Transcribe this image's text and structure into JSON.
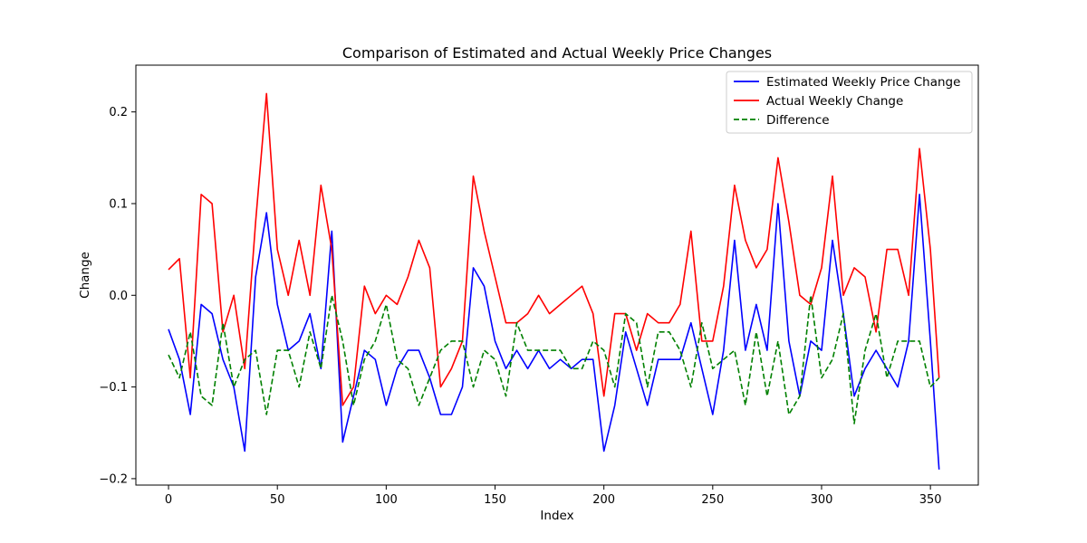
{
  "chart_data": {
    "type": "line",
    "title": "Comparison of Estimated and Actual Weekly Price Changes",
    "xlabel": "Index",
    "ylabel": "Change",
    "xlim": [
      -15,
      372
    ],
    "ylim": [
      -0.207,
      0.251
    ],
    "xticks": [
      0,
      50,
      100,
      150,
      200,
      250,
      300,
      350
    ],
    "yticks": [
      -0.2,
      -0.1,
      0.0,
      0.1,
      0.2
    ],
    "ytick_labels": [
      "−0.2",
      "−0.1",
      "0.0",
      "0.1",
      "0.2"
    ],
    "grid": false,
    "legend_position": "upper right",
    "x": [
      0,
      5,
      10,
      15,
      20,
      25,
      30,
      35,
      40,
      45,
      50,
      55,
      60,
      65,
      70,
      75,
      80,
      85,
      90,
      95,
      100,
      105,
      110,
      115,
      120,
      125,
      130,
      135,
      140,
      145,
      150,
      155,
      160,
      165,
      170,
      175,
      180,
      185,
      190,
      195,
      200,
      205,
      210,
      215,
      220,
      225,
      230,
      235,
      240,
      245,
      250,
      255,
      260,
      265,
      270,
      275,
      280,
      285,
      290,
      295,
      300,
      305,
      310,
      315,
      320,
      325,
      330,
      335,
      340,
      345,
      350,
      354
    ],
    "series": [
      {
        "name": "Estimated Weekly Price Change",
        "color": "#0000ff",
        "dash": "solid",
        "values": [
          -0.037,
          -0.07,
          -0.13,
          -0.01,
          -0.02,
          -0.07,
          -0.1,
          -0.17,
          0.02,
          0.09,
          -0.01,
          -0.06,
          -0.05,
          -0.02,
          -0.08,
          0.07,
          -0.16,
          -0.11,
          -0.06,
          -0.07,
          -0.12,
          -0.08,
          -0.06,
          -0.06,
          -0.09,
          -0.13,
          -0.13,
          -0.1,
          0.03,
          0.01,
          -0.05,
          -0.08,
          -0.06,
          -0.08,
          -0.06,
          -0.08,
          -0.07,
          -0.08,
          -0.07,
          -0.07,
          -0.17,
          -0.12,
          -0.04,
          -0.08,
          -0.12,
          -0.07,
          -0.07,
          -0.07,
          -0.03,
          -0.08,
          -0.13,
          -0.06,
          0.06,
          -0.06,
          -0.01,
          -0.06,
          0.1,
          -0.05,
          -0.11,
          -0.05,
          -0.06,
          0.06,
          -0.02,
          -0.11,
          -0.08,
          -0.06,
          -0.08,
          -0.1,
          -0.05,
          0.11,
          -0.05,
          -0.19
        ]
      },
      {
        "name": "Actual Weekly Change",
        "color": "#ff0000",
        "dash": "solid",
        "values": [
          0.028,
          0.04,
          -0.09,
          0.11,
          0.1,
          -0.04,
          0.0,
          -0.08,
          0.08,
          0.22,
          0.05,
          0.0,
          0.06,
          0.0,
          0.12,
          0.05,
          -0.12,
          -0.1,
          0.01,
          -0.02,
          0.0,
          -0.01,
          0.02,
          0.06,
          0.03,
          -0.1,
          -0.08,
          -0.05,
          0.13,
          0.07,
          0.02,
          -0.03,
          -0.03,
          -0.02,
          0.0,
          -0.02,
          -0.01,
          0.0,
          0.01,
          -0.02,
          -0.11,
          -0.02,
          -0.02,
          -0.06,
          -0.02,
          -0.03,
          -0.03,
          -0.01,
          0.07,
          -0.05,
          -0.05,
          0.01,
          0.12,
          0.06,
          0.03,
          0.05,
          0.15,
          0.08,
          0.0,
          -0.01,
          0.03,
          0.13,
          0.0,
          0.03,
          0.02,
          -0.04,
          0.05,
          0.05,
          0.0,
          0.16,
          0.05,
          -0.09
        ]
      },
      {
        "name": "Difference",
        "color": "#008000",
        "dash": "dashed",
        "values": [
          -0.065,
          -0.09,
          -0.04,
          -0.11,
          -0.12,
          -0.03,
          -0.1,
          -0.07,
          -0.06,
          -0.13,
          -0.06,
          -0.06,
          -0.1,
          -0.04,
          -0.08,
          0.0,
          -0.05,
          -0.12,
          -0.07,
          -0.05,
          -0.01,
          -0.07,
          -0.08,
          -0.12,
          -0.09,
          -0.06,
          -0.05,
          -0.05,
          -0.1,
          -0.06,
          -0.07,
          -0.11,
          -0.03,
          -0.06,
          -0.06,
          -0.06,
          -0.06,
          -0.08,
          -0.08,
          -0.05,
          -0.06,
          -0.1,
          -0.02,
          -0.03,
          -0.1,
          -0.04,
          -0.04,
          -0.06,
          -0.1,
          -0.03,
          -0.08,
          -0.07,
          -0.06,
          -0.12,
          -0.04,
          -0.11,
          -0.05,
          -0.13,
          -0.11,
          0.0,
          -0.09,
          -0.07,
          -0.02,
          -0.14,
          -0.06,
          -0.02,
          -0.09,
          -0.05,
          -0.05,
          -0.05,
          -0.1,
          -0.09
        ]
      }
    ]
  }
}
